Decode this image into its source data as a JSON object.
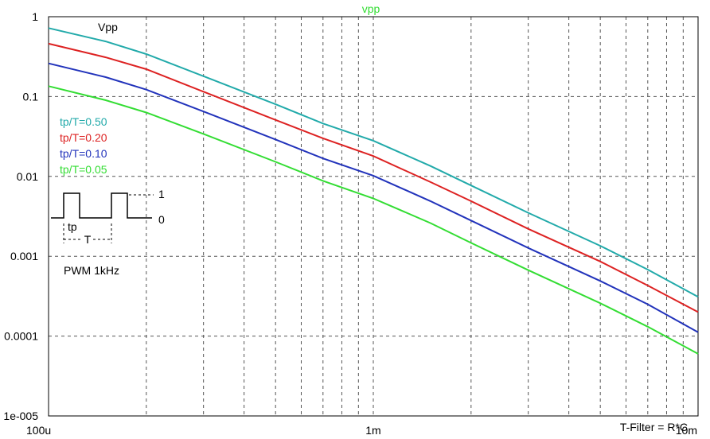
{
  "chart_data": {
    "type": "line",
    "title": "vpp",
    "title_color": "#33dd33",
    "ylabel": "Vpp",
    "xlabel": "T-Filter = R*C",
    "x_scale": "log",
    "y_scale": "log",
    "xlim": [
      0.0001,
      0.01
    ],
    "ylim": [
      1e-05,
      1
    ],
    "grid": true,
    "x_ticks": [
      {
        "value": 0.0001,
        "label": "100u"
      },
      {
        "value": 0.001,
        "label": "1m"
      },
      {
        "value": 0.01,
        "label": "10m"
      }
    ],
    "y_ticks": [
      {
        "value": 1,
        "label": "1"
      },
      {
        "value": 0.1,
        "label": "0.1"
      },
      {
        "value": 0.01,
        "label": "0.01"
      },
      {
        "value": 0.001,
        "label": "0.001"
      },
      {
        "value": 0.0001,
        "label": "0.0001"
      },
      {
        "value": 1e-05,
        "label": "1e-005"
      }
    ],
    "legend_placement": "left",
    "series": [
      {
        "name": "tp/T=0.50",
        "color": "#22aaaa",
        "x": [
          0.0001,
          0.00015,
          0.0002,
          0.0003,
          0.0005,
          0.0007,
          0.001,
          0.0015,
          0.002,
          0.003,
          0.005,
          0.007,
          0.01
        ],
        "y": [
          0.72,
          0.49,
          0.34,
          0.18,
          0.08,
          0.046,
          0.028,
          0.0135,
          0.0077,
          0.0035,
          0.00135,
          0.00068,
          0.00031
        ]
      },
      {
        "name": "tp/T=0.20",
        "color": "#dd2222",
        "x": [
          0.0001,
          0.00015,
          0.0002,
          0.0003,
          0.0005,
          0.0007,
          0.001,
          0.0015,
          0.002,
          0.003,
          0.005,
          0.007,
          0.01
        ],
        "y": [
          0.46,
          0.31,
          0.22,
          0.115,
          0.051,
          0.03,
          0.018,
          0.0085,
          0.0049,
          0.0022,
          0.00086,
          0.00043,
          0.0002
        ]
      },
      {
        "name": "tp/T=0.10",
        "color": "#2233bb",
        "x": [
          0.0001,
          0.00015,
          0.0002,
          0.0003,
          0.0005,
          0.0007,
          0.001,
          0.0015,
          0.002,
          0.003,
          0.005,
          0.007,
          0.01
        ],
        "y": [
          0.26,
          0.175,
          0.122,
          0.065,
          0.029,
          0.0168,
          0.0102,
          0.0049,
          0.0028,
          0.00127,
          0.00049,
          0.00025,
          0.000112
        ]
      },
      {
        "name": "tp/T=0.05",
        "color": "#33dd33",
        "x": [
          0.0001,
          0.00015,
          0.0002,
          0.0003,
          0.0005,
          0.0007,
          0.001,
          0.0015,
          0.002,
          0.003,
          0.005,
          0.007,
          0.01
        ],
        "y": [
          0.135,
          0.09,
          0.063,
          0.034,
          0.0152,
          0.0088,
          0.0053,
          0.0026,
          0.00147,
          0.00067,
          0.000258,
          0.000131,
          6e-05
        ]
      }
    ]
  },
  "annotations": {
    "pwm_label": "PWM 1kHz",
    "pulse_high": "1",
    "pulse_low": "0",
    "pulse_width": "tp",
    "period": "T"
  }
}
